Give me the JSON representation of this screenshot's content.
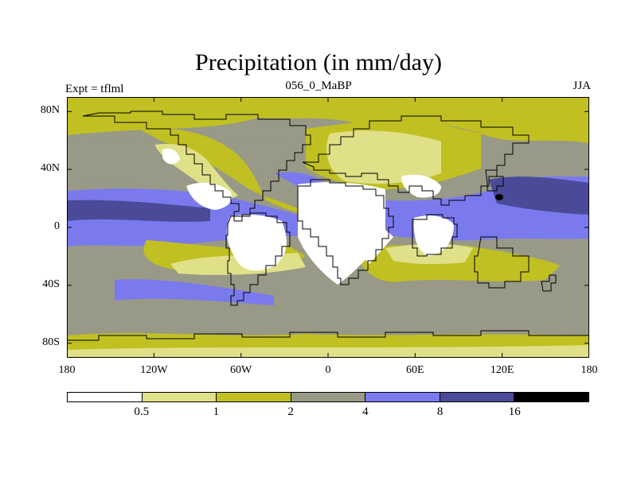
{
  "header": {
    "title": "Precipitation (in mm/day)",
    "left_label": "Expt = tflml",
    "center_label": "056_0_MaBP",
    "right_label": "JJA"
  },
  "axes": {
    "y_ticks": [
      {
        "label": "80N",
        "lat": 80
      },
      {
        "label": "40N",
        "lat": 40
      },
      {
        "label": "0",
        "lat": 0
      },
      {
        "label": "40S",
        "lat": -40
      },
      {
        "label": "80S",
        "lat": -80
      }
    ],
    "x_ticks": [
      {
        "label": "180",
        "lon": -180
      },
      {
        "label": "120W",
        "lon": -120
      },
      {
        "label": "60W",
        "lon": -60
      },
      {
        "label": "0",
        "lon": 0
      },
      {
        "label": "60E",
        "lon": 60
      },
      {
        "label": "120E",
        "lon": 120
      },
      {
        "label": "180",
        "lon": 180
      }
    ],
    "lon_range": [
      -180,
      180
    ],
    "lat_range": [
      -90,
      90
    ]
  },
  "colorbar": {
    "labels": [
      "0.5",
      "1",
      "2",
      "4",
      "8",
      "16"
    ],
    "colors": [
      "#ffffff",
      "#e0e088",
      "#c0c022",
      "#999988",
      "#7a7aee",
      "#4a4a99",
      "#000000"
    ]
  },
  "field_colors": {
    "white": "#ffffff",
    "pale_yellow": "#e0e088",
    "olive": "#c0c022",
    "gray": "#999988",
    "blue": "#7a7aee",
    "dark_blue": "#4a4a99",
    "black": "#000000"
  }
}
